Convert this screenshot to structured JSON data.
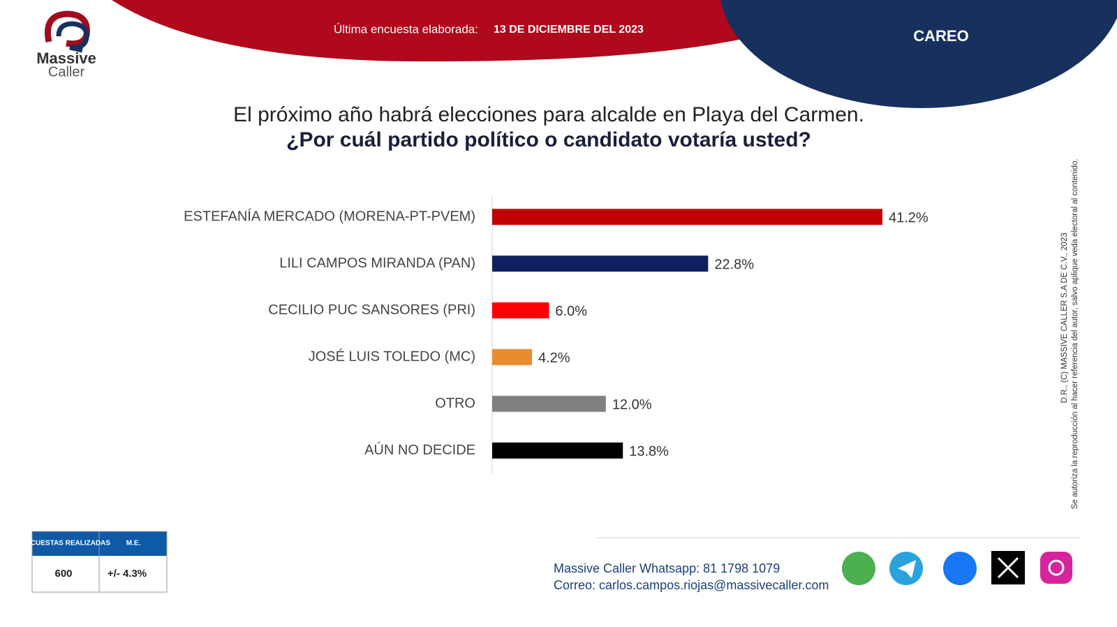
{
  "chart_data": {
    "type": "hbar",
    "title": "El próximo año habrá elecciones para alcalde en Playa del Carmen.",
    "subtitle": "¿Por cuál partido político o candidato votaría usted?",
    "categories": [
      "ESTEFANÍA MERCADO (MORENA-PT-PVEM)",
      "LILI CAMPOS MIRANDA (PAN)",
      "CECILIO PUC SANSORES (PRI)",
      "JOSÉ LUIS TOLEDO (MC)",
      "OTRO",
      "AÚN NO DECIDE"
    ],
    "values": [
      41.2,
      22.8,
      6.0,
      4.2,
      12.0,
      13.8
    ],
    "value_labels": [
      "41.2%",
      "22.8%",
      "6.0%",
      "4.2%",
      "12.0%",
      "13.8%"
    ],
    "colors": [
      "#c00000",
      "#0f2060",
      "#ff0000",
      "#ea8a2f",
      "#808080",
      "#000000"
    ]
  },
  "logo": {
    "line1": "Massive",
    "line2": "Caller"
  },
  "header": {
    "label": "Última encuesta elaborada:",
    "date": "13 DE DICIEMBRE DEL 2023",
    "tag": "CAREO"
  },
  "table": {
    "headers": [
      "ENCUESTAS REALIZADAS",
      "M.E."
    ],
    "rows": [
      [
        "600",
        "+/- 4.3%"
      ]
    ]
  },
  "footer": {
    "whatsapp_label": "Massive Caller Whatsapp:",
    "whatsapp": "81 1798 1079",
    "email_label": "Correo:",
    "email": "carlos.campos.riojas@massivecaller.com"
  },
  "copyright": [
    "D.R., (C) MASSIVE CALLER S.A DE C.V., 2023",
    "Se autoriza la reproducción al hacer referencia del autor, salvo aplique veda electoral al contenido."
  ]
}
